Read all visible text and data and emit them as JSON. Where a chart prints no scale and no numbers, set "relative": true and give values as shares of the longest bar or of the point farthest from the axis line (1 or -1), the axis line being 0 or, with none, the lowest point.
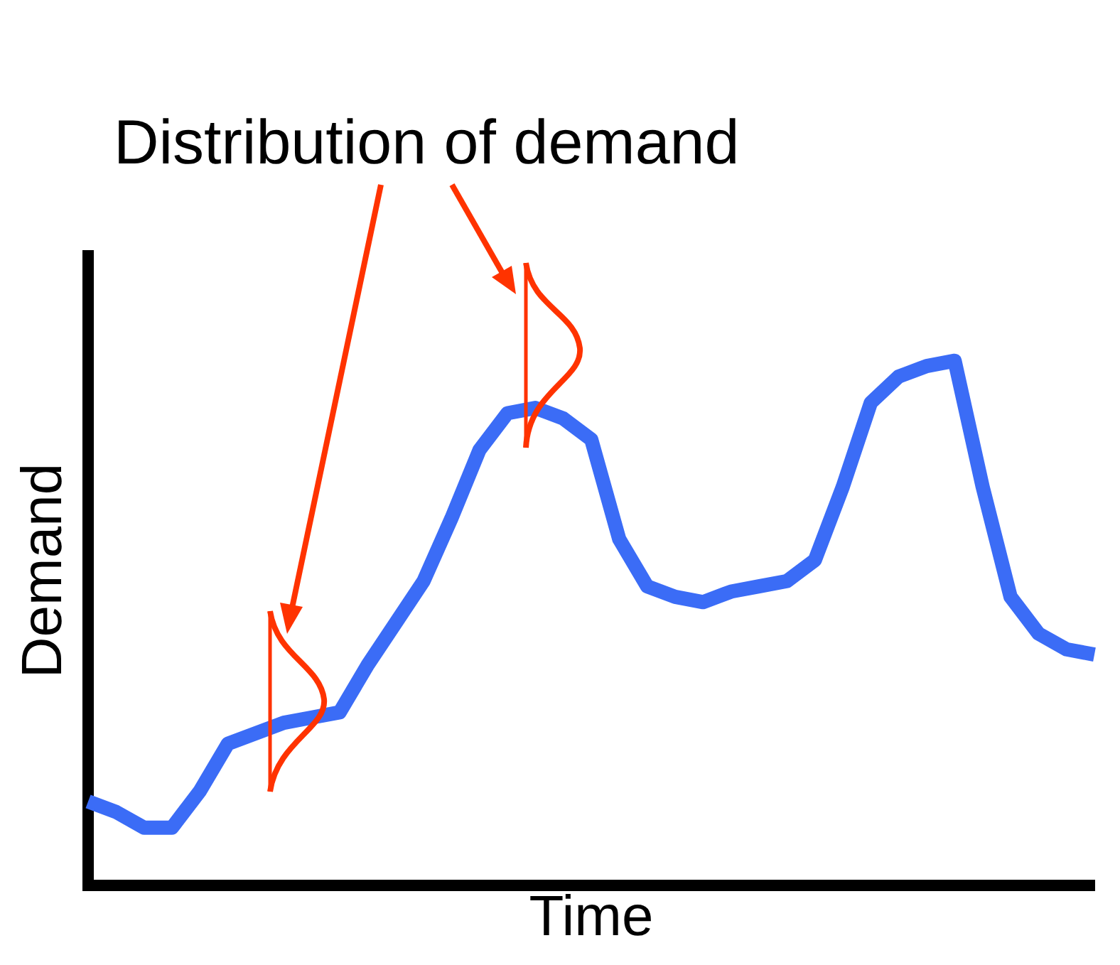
{
  "chart_data": {
    "type": "line",
    "relative": true,
    "xlabel": "Time",
    "ylabel": "Demand",
    "annotations": [
      "Distribution of demand"
    ],
    "categories": [
      null,
      null,
      null,
      null,
      null,
      null,
      null,
      null,
      null,
      null,
      null,
      null,
      null,
      null,
      null,
      null,
      null,
      null,
      null,
      null,
      null,
      null,
      null,
      null,
      null,
      null,
      null,
      null,
      null,
      null,
      null,
      null,
      null,
      null,
      null,
      null,
      null
    ],
    "series": [
      {
        "color": "#3b6cf6",
        "values": [
          0.16,
          0.14,
          0.11,
          0.11,
          0.18,
          0.27,
          0.29,
          0.31,
          0.32,
          0.33,
          0.42,
          0.5,
          0.58,
          0.7,
          0.83,
          0.9,
          0.91,
          0.89,
          0.85,
          0.66,
          0.57,
          0.55,
          0.54,
          0.56,
          0.57,
          0.58,
          0.62,
          0.76,
          0.92,
          0.97,
          0.99,
          1.0,
          0.76,
          0.55,
          0.48,
          0.45,
          0.44
        ]
      }
    ],
    "marker": "none",
    "line_style": "solid",
    "legend": false,
    "grid": false
  }
}
